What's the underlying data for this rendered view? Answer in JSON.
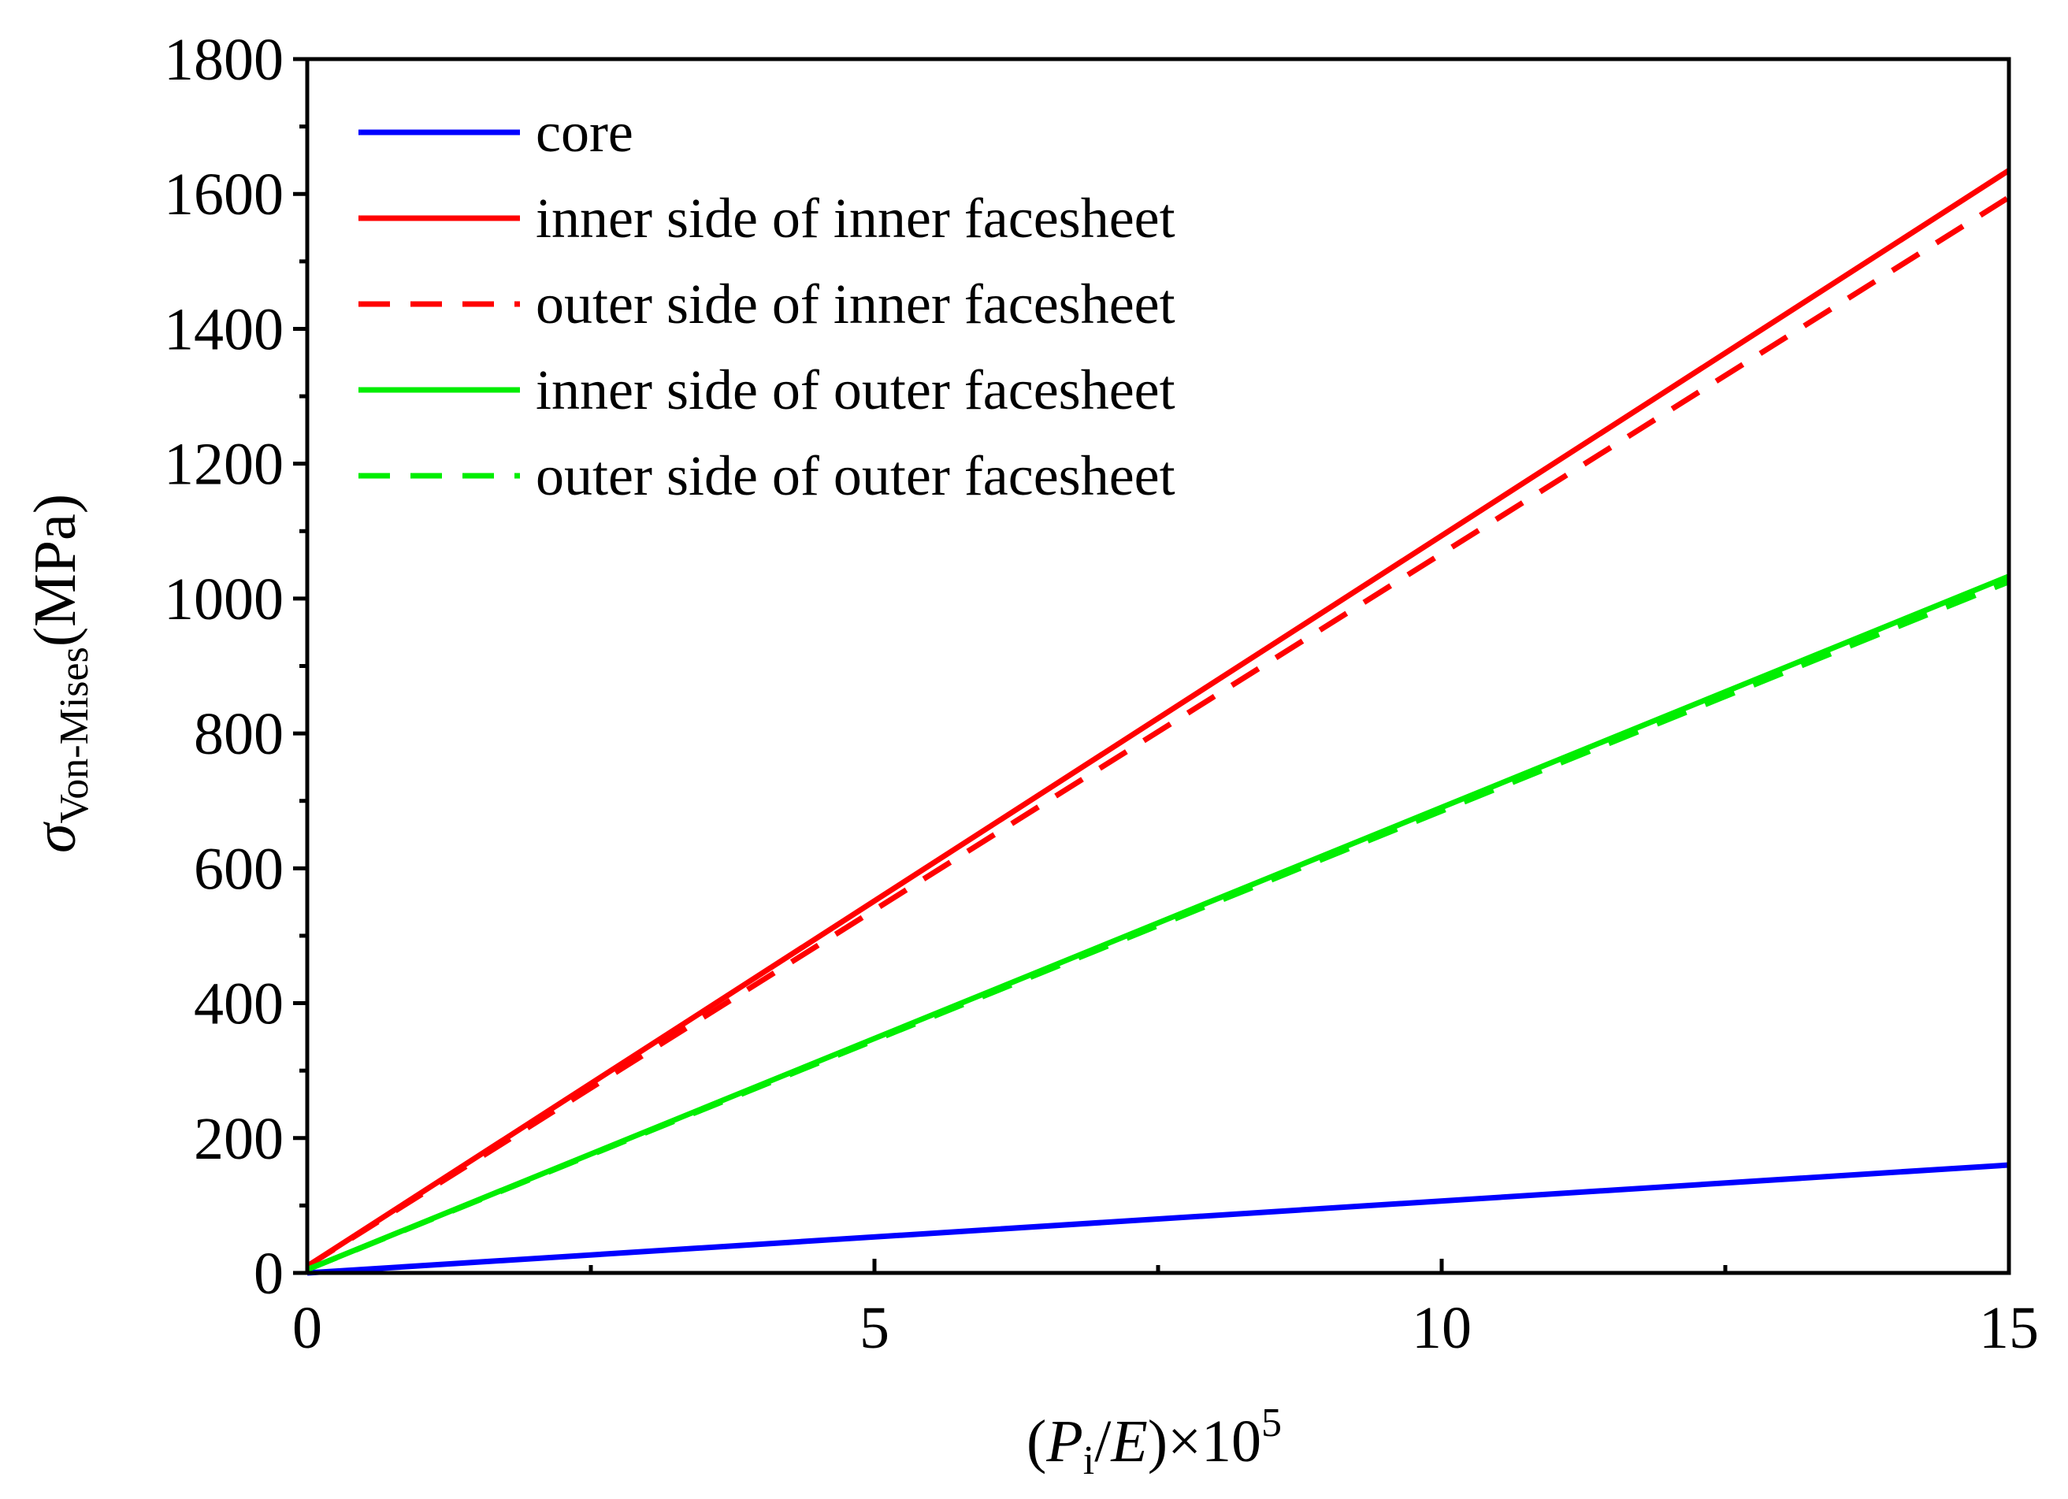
{
  "chart_data": {
    "type": "line",
    "xlabel": "(Pi/E)×10^5",
    "xlabel_parts": {
      "open": "(",
      "var": "P",
      "sub": "i",
      "mid": "/",
      "den": "E",
      "close": ")×10",
      "sup": "5"
    },
    "ylabel": "σVon-Mises(MPa)",
    "ylabel_parts": {
      "sym": "σ",
      "sub": "Von-Mises",
      "unit": "(MPa)"
    },
    "xlim": [
      0,
      15
    ],
    "ylim": [
      0,
      1800
    ],
    "xticks": [
      0,
      5,
      10,
      15
    ],
    "yticks": [
      0,
      200,
      400,
      600,
      800,
      1000,
      1200,
      1400,
      1600,
      1800
    ],
    "grid": false,
    "legend_position": "top-left",
    "series": [
      {
        "name": "core",
        "color": "#0000ff",
        "style": "solid",
        "x": [
          0,
          15
        ],
        "y": [
          0,
          160
        ]
      },
      {
        "name": "inner side of inner facesheet",
        "color": "#ff0000",
        "style": "solid",
        "x": [
          0,
          15
        ],
        "y": [
          10,
          1635
        ]
      },
      {
        "name": "outer side of inner facesheet",
        "color": "#ff0000",
        "style": "dashed",
        "x": [
          0,
          15
        ],
        "y": [
          10,
          1595
        ]
      },
      {
        "name": "inner side of outer facesheet",
        "color": "#00ee00",
        "style": "solid",
        "x": [
          0,
          15
        ],
        "y": [
          5,
          1033
        ]
      },
      {
        "name": "outer side of outer facesheet",
        "color": "#00ee00",
        "style": "dashed",
        "x": [
          0,
          15
        ],
        "y": [
          5,
          1025
        ]
      }
    ]
  }
}
